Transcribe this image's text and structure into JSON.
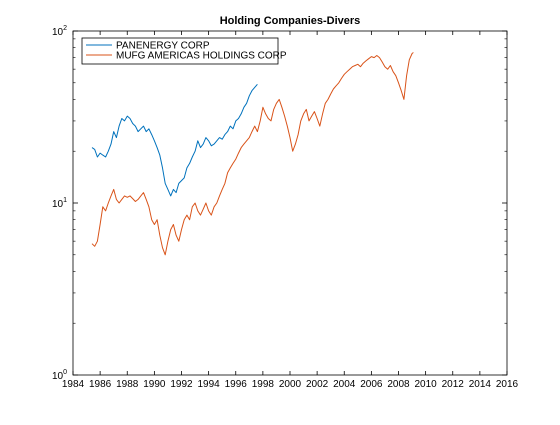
{
  "chart_data": {
    "type": "line",
    "title": "Holding Companies-Divers",
    "xlabel": "",
    "ylabel": "",
    "xlim": [
      1984,
      2016
    ],
    "ylim": [
      1,
      100
    ],
    "yscale": "log",
    "grid": false,
    "legend_position": "top-left",
    "x_ticks": [
      1984,
      1986,
      1988,
      1990,
      1992,
      1994,
      1996,
      1998,
      2000,
      2002,
      2004,
      2006,
      2008,
      2010,
      2012,
      2014,
      2016
    ],
    "y_ticks": [
      {
        "value": 1,
        "base": "10",
        "exp": "0"
      },
      {
        "value": 10,
        "base": "10",
        "exp": "1"
      },
      {
        "value": 100,
        "base": "10",
        "exp": "2"
      }
    ],
    "series": [
      {
        "name": "PANENERGY CORP",
        "color": "#0072bd",
        "points": [
          [
            1985.4,
            21
          ],
          [
            1985.6,
            20.5
          ],
          [
            1985.8,
            18.5
          ],
          [
            1986.0,
            19.5
          ],
          [
            1986.2,
            19
          ],
          [
            1986.4,
            18.5
          ],
          [
            1986.6,
            20
          ],
          [
            1986.8,
            22
          ],
          [
            1987.0,
            26
          ],
          [
            1987.2,
            24
          ],
          [
            1987.4,
            28
          ],
          [
            1987.6,
            31
          ],
          [
            1987.8,
            30
          ],
          [
            1988.0,
            32
          ],
          [
            1988.2,
            31
          ],
          [
            1988.4,
            29
          ],
          [
            1988.6,
            28
          ],
          [
            1988.8,
            26
          ],
          [
            1989.0,
            27
          ],
          [
            1989.2,
            28
          ],
          [
            1989.4,
            26
          ],
          [
            1989.6,
            27
          ],
          [
            1989.8,
            25
          ],
          [
            1990.0,
            23
          ],
          [
            1990.2,
            21
          ],
          [
            1990.4,
            19
          ],
          [
            1990.6,
            16
          ],
          [
            1990.8,
            13
          ],
          [
            1991.0,
            12
          ],
          [
            1991.2,
            11
          ],
          [
            1991.4,
            12
          ],
          [
            1991.6,
            11.5
          ],
          [
            1991.8,
            13
          ],
          [
            1992.0,
            13.5
          ],
          [
            1992.2,
            14
          ],
          [
            1992.4,
            16
          ],
          [
            1992.6,
            17
          ],
          [
            1992.8,
            18.5
          ],
          [
            1993.0,
            20
          ],
          [
            1993.2,
            23
          ],
          [
            1993.4,
            21
          ],
          [
            1993.6,
            22
          ],
          [
            1993.8,
            24
          ],
          [
            1994.0,
            23
          ],
          [
            1994.2,
            21.5
          ],
          [
            1994.4,
            22
          ],
          [
            1994.6,
            23
          ],
          [
            1994.8,
            24
          ],
          [
            1995.0,
            23.5
          ],
          [
            1995.2,
            25
          ],
          [
            1995.4,
            26
          ],
          [
            1995.6,
            28
          ],
          [
            1995.8,
            27
          ],
          [
            1996.0,
            30
          ],
          [
            1996.2,
            31
          ],
          [
            1996.4,
            33
          ],
          [
            1996.6,
            36
          ],
          [
            1996.8,
            38
          ],
          [
            1997.0,
            42
          ],
          [
            1997.2,
            45
          ],
          [
            1997.4,
            47
          ],
          [
            1997.6,
            49
          ]
        ]
      },
      {
        "name": "MUFG AMERICAS HOLDINGS CORP",
        "color": "#d95319",
        "points": [
          [
            1985.4,
            5.8
          ],
          [
            1985.6,
            5.6
          ],
          [
            1985.8,
            6
          ],
          [
            1986.0,
            7.5
          ],
          [
            1986.2,
            9.5
          ],
          [
            1986.4,
            9
          ],
          [
            1986.6,
            10
          ],
          [
            1986.8,
            11
          ],
          [
            1987.0,
            12
          ],
          [
            1987.2,
            10.5
          ],
          [
            1987.4,
            10
          ],
          [
            1987.6,
            10.5
          ],
          [
            1987.8,
            11
          ],
          [
            1988.0,
            10.8
          ],
          [
            1988.2,
            11
          ],
          [
            1988.4,
            10.6
          ],
          [
            1988.6,
            10.2
          ],
          [
            1988.8,
            10.5
          ],
          [
            1989.0,
            11
          ],
          [
            1989.2,
            11.5
          ],
          [
            1989.4,
            10.5
          ],
          [
            1989.6,
            9.5
          ],
          [
            1989.8,
            8
          ],
          [
            1990.0,
            7.5
          ],
          [
            1990.2,
            8
          ],
          [
            1990.4,
            6.5
          ],
          [
            1990.6,
            5.5
          ],
          [
            1990.8,
            5
          ],
          [
            1991.0,
            6
          ],
          [
            1991.2,
            7
          ],
          [
            1991.4,
            7.5
          ],
          [
            1991.6,
            6.5
          ],
          [
            1991.8,
            6
          ],
          [
            1992.0,
            7
          ],
          [
            1992.2,
            8
          ],
          [
            1992.4,
            8.5
          ],
          [
            1992.6,
            8
          ],
          [
            1992.8,
            9.5
          ],
          [
            1993.0,
            10
          ],
          [
            1993.2,
            9
          ],
          [
            1993.4,
            8.5
          ],
          [
            1993.6,
            9.2
          ],
          [
            1993.8,
            10
          ],
          [
            1994.0,
            9
          ],
          [
            1994.2,
            8.5
          ],
          [
            1994.4,
            9.5
          ],
          [
            1994.6,
            10
          ],
          [
            1994.8,
            11
          ],
          [
            1995.0,
            12
          ],
          [
            1995.2,
            13
          ],
          [
            1995.4,
            15
          ],
          [
            1995.6,
            16
          ],
          [
            1995.8,
            17
          ],
          [
            1996.0,
            18
          ],
          [
            1996.2,
            19.5
          ],
          [
            1996.4,
            21
          ],
          [
            1996.6,
            22
          ],
          [
            1996.8,
            23
          ],
          [
            1997.0,
            24
          ],
          [
            1997.2,
            26
          ],
          [
            1997.4,
            28
          ],
          [
            1997.6,
            26
          ],
          [
            1997.8,
            30
          ],
          [
            1998.0,
            36
          ],
          [
            1998.2,
            33
          ],
          [
            1998.4,
            31
          ],
          [
            1998.6,
            30
          ],
          [
            1998.8,
            35
          ],
          [
            1999.0,
            38
          ],
          [
            1999.2,
            40
          ],
          [
            1999.4,
            36
          ],
          [
            1999.6,
            32
          ],
          [
            1999.8,
            28
          ],
          [
            2000.0,
            24
          ],
          [
            2000.2,
            20
          ],
          [
            2000.4,
            22
          ],
          [
            2000.6,
            25
          ],
          [
            2000.8,
            30
          ],
          [
            2001.0,
            33
          ],
          [
            2001.2,
            35
          ],
          [
            2001.4,
            30
          ],
          [
            2001.6,
            32
          ],
          [
            2001.8,
            34
          ],
          [
            2002.0,
            31
          ],
          [
            2002.2,
            28
          ],
          [
            2002.4,
            33
          ],
          [
            2002.6,
            38
          ],
          [
            2002.8,
            40
          ],
          [
            2003.0,
            43
          ],
          [
            2003.2,
            46
          ],
          [
            2003.4,
            48
          ],
          [
            2003.6,
            50
          ],
          [
            2003.8,
            53
          ],
          [
            2004.0,
            56
          ],
          [
            2004.2,
            58
          ],
          [
            2004.4,
            60
          ],
          [
            2004.6,
            62
          ],
          [
            2004.8,
            63
          ],
          [
            2005.0,
            64
          ],
          [
            2005.2,
            62
          ],
          [
            2005.4,
            65
          ],
          [
            2005.6,
            67
          ],
          [
            2005.8,
            69
          ],
          [
            2006.0,
            71
          ],
          [
            2006.2,
            70
          ],
          [
            2006.4,
            72
          ],
          [
            2006.6,
            70
          ],
          [
            2006.8,
            66
          ],
          [
            2007.0,
            62
          ],
          [
            2007.2,
            60
          ],
          [
            2007.4,
            63
          ],
          [
            2007.6,
            58
          ],
          [
            2007.8,
            55
          ],
          [
            2008.0,
            50
          ],
          [
            2008.2,
            45
          ],
          [
            2008.4,
            40
          ],
          [
            2008.6,
            55
          ],
          [
            2008.8,
            68
          ],
          [
            2009.0,
            74
          ],
          [
            2009.1,
            75
          ]
        ]
      }
    ]
  }
}
